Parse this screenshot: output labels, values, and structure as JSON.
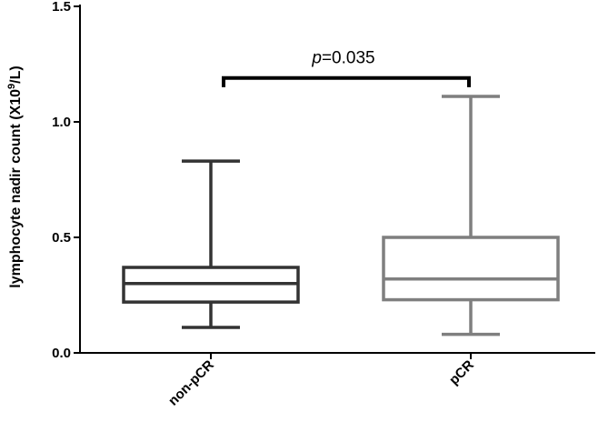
{
  "chart_data": {
    "type": "box",
    "title": "",
    "xlabel": "",
    "ylabel": "lymphocyte nadir count (X10",
    "ylabel_superscript": "9",
    "ylabel_suffix": "/L)",
    "ylim": [
      0,
      1.5
    ],
    "yticks": [
      0.0,
      0.5,
      1.0,
      1.5
    ],
    "ytick_labels": [
      "0.0",
      "0.5",
      "1.0",
      "1.5"
    ],
    "grid": false,
    "categories": [
      "non-pCR",
      "pCR"
    ],
    "boxes": [
      {
        "category": "non-pCR",
        "min": 0.11,
        "q1": 0.22,
        "median": 0.3,
        "q3": 0.37,
        "max": 0.83,
        "color": "#333333"
      },
      {
        "category": "pCR",
        "min": 0.08,
        "q1": 0.23,
        "median": 0.32,
        "q3": 0.5,
        "max": 1.11,
        "color": "#7f7f7f"
      }
    ],
    "annotation": {
      "text_italic": "p",
      "text_rest": "=0.035",
      "bracket_level": 1.19,
      "bracket_drop": 1.15
    }
  }
}
